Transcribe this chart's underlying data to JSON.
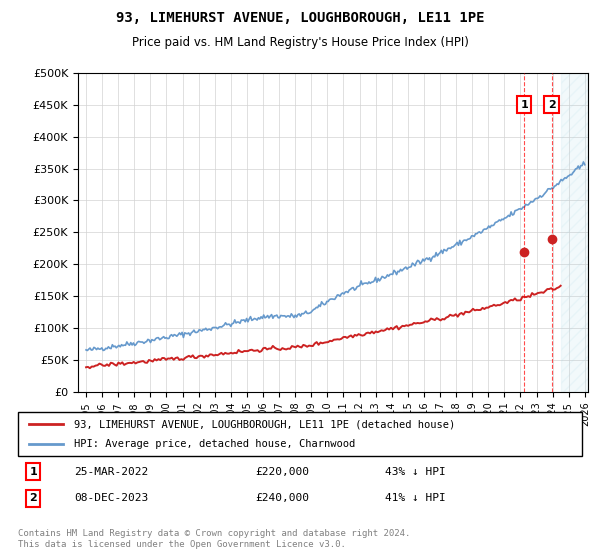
{
  "title": "93, LIMEHURST AVENUE, LOUGHBOROUGH, LE11 1PE",
  "subtitle": "Price paid vs. HM Land Registry's House Price Index (HPI)",
  "ylabel_ticks": [
    "£0",
    "£50K",
    "£100K",
    "£150K",
    "£200K",
    "£250K",
    "£300K",
    "£350K",
    "£400K",
    "£450K",
    "£500K"
  ],
  "ytick_values": [
    0,
    50000,
    100000,
    150000,
    200000,
    250000,
    300000,
    350000,
    400000,
    450000,
    500000
  ],
  "xlim": [
    1995,
    2026
  ],
  "ylim": [
    0,
    500000
  ],
  "hpi_color": "#6699cc",
  "property_color": "#cc2222",
  "sale1_date": "25-MAR-2022",
  "sale1_price": 220000,
  "sale1_label": "43% ↓ HPI",
  "sale1_x": 2022.23,
  "sale2_date": "08-DEC-2023",
  "sale2_price": 240000,
  "sale2_label": "41% ↓ HPI",
  "sale2_x": 2023.94,
  "legend_line1": "93, LIMEHURST AVENUE, LOUGHBOROUGH, LE11 1PE (detached house)",
  "legend_line2": "HPI: Average price, detached house, Charnwood",
  "footer": "Contains HM Land Registry data © Crown copyright and database right 2024.\nThis data is licensed under the Open Government Licence v3.0.",
  "hatch_start": 2024.5,
  "hatch_color": "#aaaacc"
}
